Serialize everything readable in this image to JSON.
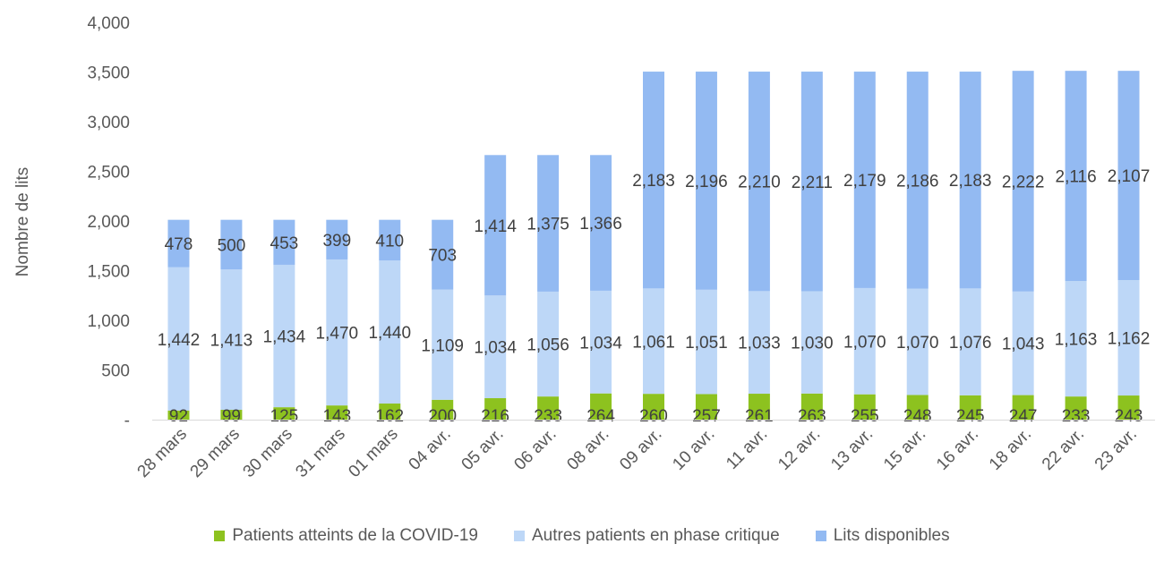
{
  "chart_data": {
    "type": "bar",
    "stacked": true,
    "ylabel": "Nombre de lits",
    "ylim": [
      0,
      4000
    ],
    "yticks": [
      {
        "value": 0,
        "label": "-"
      },
      {
        "value": 500,
        "label": "500"
      },
      {
        "value": 1000,
        "label": "1,000"
      },
      {
        "value": 1500,
        "label": "1,500"
      },
      {
        "value": 2000,
        "label": "2,000"
      },
      {
        "value": 2500,
        "label": "2,500"
      },
      {
        "value": 3000,
        "label": "3,000"
      },
      {
        "value": 3500,
        "label": "3,500"
      },
      {
        "value": 4000,
        "label": "4,000"
      }
    ],
    "categories": [
      "28 mars",
      "29 mars",
      "30 mars",
      "31 mars",
      "01 mars",
      "04 avr.",
      "05 avr.",
      "06 avr.",
      "08 avr.",
      "09 avr.",
      "10 avr.",
      "11 avr.",
      "12 avr.",
      "13 avr.",
      "15 avr.",
      "16 avr.",
      "18 avr.",
      "22 avr.",
      "23 avr."
    ],
    "series": [
      {
        "name": "Patients atteints de la COVID-19",
        "color": "#8DC21F",
        "values": [
          92,
          99,
          125,
          143,
          162,
          200,
          216,
          233,
          264,
          260,
          257,
          261,
          263,
          255,
          248,
          245,
          247,
          233,
          243
        ],
        "labels": [
          "92",
          "99",
          "125",
          "143",
          "162",
          "200",
          "216",
          "233",
          "264",
          "260",
          "257",
          "261",
          "263",
          "255",
          "248",
          "245",
          "247",
          "233",
          "243"
        ]
      },
      {
        "name": "Autres patients en phase critique",
        "color": "#BDD7F7",
        "values": [
          1442,
          1413,
          1434,
          1470,
          1440,
          1109,
          1034,
          1056,
          1034,
          1061,
          1051,
          1033,
          1030,
          1070,
          1070,
          1076,
          1043,
          1163,
          1162
        ],
        "labels": [
          "1,442",
          "1,413",
          "1,434",
          "1,470",
          "1,440",
          "1,109",
          "1,034",
          "1,056",
          "1,034",
          "1,061",
          "1,051",
          "1,033",
          "1,030",
          "1,070",
          "1,070",
          "1,076",
          "1,043",
          "1,163",
          "1,162"
        ]
      },
      {
        "name": "Lits disponibles",
        "color": "#93BAF2",
        "values": [
          478,
          500,
          453,
          399,
          410,
          703,
          1414,
          1375,
          1366,
          2183,
          2196,
          2210,
          2211,
          2179,
          2186,
          2183,
          2222,
          2116,
          2107
        ],
        "labels": [
          "478",
          "500",
          "453",
          "399",
          "410",
          "703",
          "1,414",
          "1,375",
          "1,366",
          "2,183",
          "2,196",
          "2,210",
          "2,211",
          "2,179",
          "2,186",
          "2,183",
          "2,222",
          "2,116",
          "2,107"
        ]
      }
    ],
    "legend_position": "bottom",
    "grid": false
  }
}
